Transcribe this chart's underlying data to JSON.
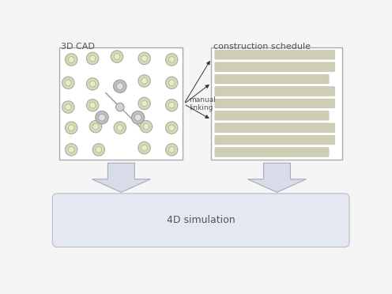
{
  "bg_color": "#f5f5f5",
  "box_color": "#ffffff",
  "box_edge_color": "#aaaaaa",
  "circle_fill": "#d8dbb0",
  "circle_edge": "#aaaaaa",
  "circle_inner_fill": "#d8dbb0",
  "spinner_body_fill": "#c0c0c0",
  "spinner_body_edge": "#999999",
  "bar_fill": "#cecdb5",
  "bar_edge": "#bbbbaa",
  "arrow_fill": "#d8dce8",
  "arrow_edge": "#aaaabb",
  "pill_fill": "#e4e8f0",
  "pill_edge": "#bbbbcc",
  "label_3dcad": "3D CAD",
  "label_schedule": "construction schedule",
  "label_manual": "manual\nlinking",
  "label_4d": "4D simulation",
  "text_color": "#555555",
  "title_fontsize": 8,
  "body_fontsize": 7,
  "small_fontsize": 6.5
}
